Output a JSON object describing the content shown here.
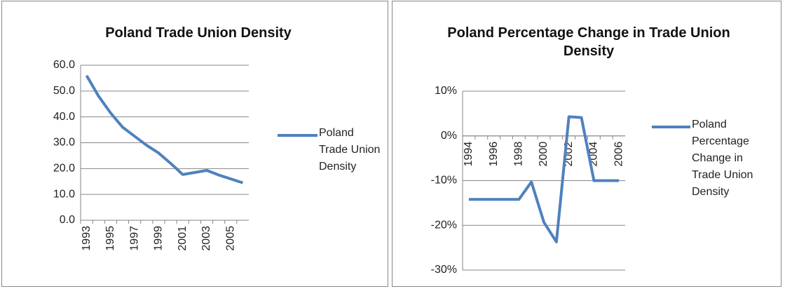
{
  "chart_data": [
    {
      "type": "line",
      "title": "Poland Trade Union Density",
      "categories": [
        "1993",
        null,
        "1995",
        null,
        "1997",
        null,
        "1999",
        null,
        "2001",
        null,
        "2003",
        null,
        "2005",
        null
      ],
      "series": [
        {
          "name": "Poland Trade Union Density",
          "color": "#4f81bd",
          "values": [
            56,
            48,
            41.5,
            36,
            32.5,
            29,
            26,
            22,
            17.7,
            18.5,
            19.3,
            17.5,
            16,
            14.5
          ]
        }
      ],
      "ylim": [
        0,
        60
      ],
      "yticks": [
        {
          "value": 0,
          "label": "0.0"
        },
        {
          "value": 10,
          "label": "10.0"
        },
        {
          "value": 20,
          "label": "20.0"
        },
        {
          "value": 30,
          "label": "30.0"
        },
        {
          "value": 40,
          "label": "40.0"
        },
        {
          "value": 50,
          "label": "50.0"
        },
        {
          "value": 60,
          "label": "60.0"
        }
      ],
      "grid": true,
      "legend": "right"
    },
    {
      "type": "line",
      "title": "Poland Percentage Change in Trade Union Density",
      "categories": [
        "1994",
        null,
        "1996",
        null,
        "1998",
        null,
        "2000",
        null,
        "2002",
        null,
        "2004",
        null,
        "2006"
      ],
      "series": [
        {
          "name": "Poland Percentage Change in Trade Union Density",
          "color": "#4f81bd",
          "values": [
            -14.2,
            -14.2,
            -14.2,
            -14.2,
            -14.2,
            -10.3,
            -19.3,
            -23.7,
            4.3,
            4.1,
            -10,
            -10,
            -10
          ]
        }
      ],
      "ylim": [
        -30,
        10
      ],
      "yticks": [
        {
          "value": -30,
          "label": "-30%"
        },
        {
          "value": -20,
          "label": "-20%"
        },
        {
          "value": -10,
          "label": "-10%"
        },
        {
          "value": 0,
          "label": "0%"
        },
        {
          "value": 10,
          "label": "10%"
        }
      ],
      "grid": true,
      "legend": "right"
    }
  ]
}
